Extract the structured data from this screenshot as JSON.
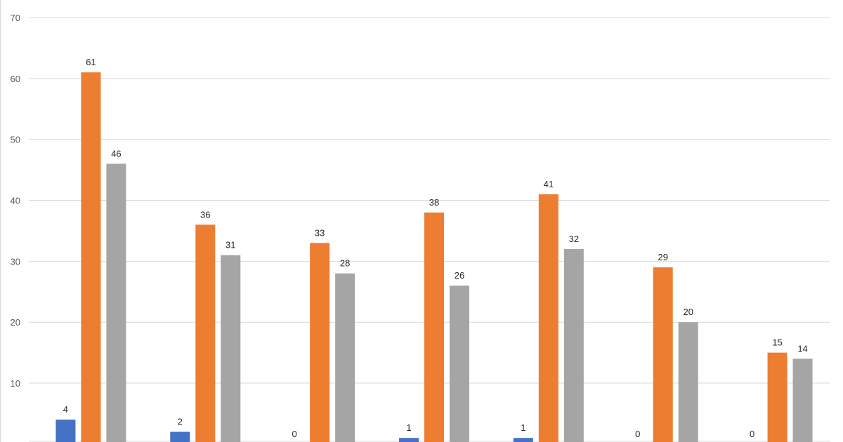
{
  "chart_data": {
    "type": "bar",
    "title": "",
    "xlabel": "",
    "ylabel": "",
    "ylim": [
      0,
      70
    ],
    "yticks": [
      10,
      20,
      30,
      40,
      50,
      60,
      70
    ],
    "grid": true,
    "data_labels": true,
    "categories": [
      "",
      "",
      "",
      "",
      "",
      "",
      ""
    ],
    "series": [
      {
        "color": "#4472c4",
        "values": [
          4,
          2,
          0,
          1,
          1,
          0,
          0
        ]
      },
      {
        "color": "#ed7d31",
        "values": [
          61,
          36,
          33,
          38,
          41,
          29,
          15
        ]
      },
      {
        "color": "#a5a5a5",
        "values": [
          46,
          31,
          28,
          26,
          32,
          20,
          14
        ]
      }
    ]
  }
}
